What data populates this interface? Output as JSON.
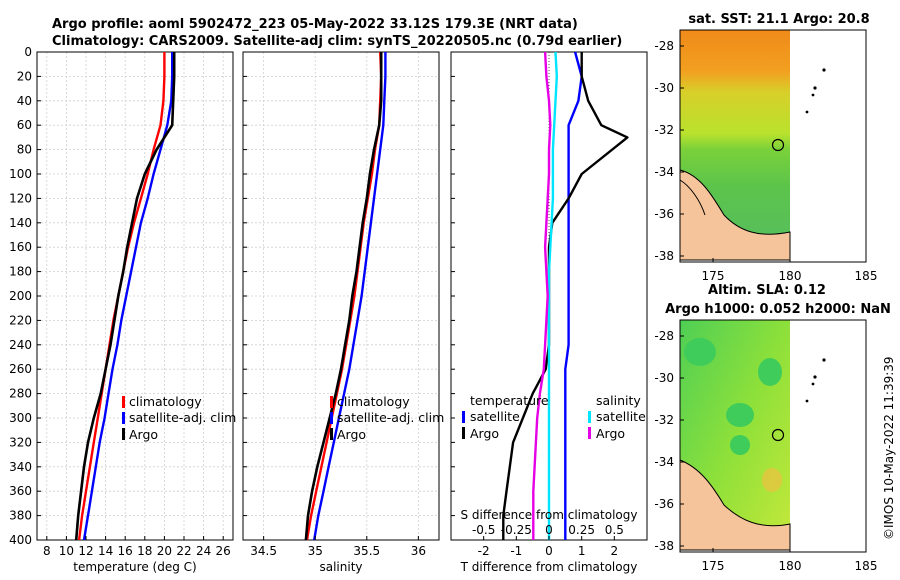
{
  "header": {
    "line1": "Argo profile: aoml 5902472_223 05-May-2022 33.12S 179.3E (NRT data)",
    "line2": "Climatology: CARS2009. Satellite-adj clim: synTS_20220505.nc (0.79d earlier)"
  },
  "depth_ticks": [
    "0",
    "20",
    "40",
    "60",
    "80",
    "100",
    "120",
    "140",
    "160",
    "180",
    "200",
    "220",
    "240",
    "260",
    "280",
    "300",
    "320",
    "340",
    "360",
    "380",
    "400"
  ],
  "colors": {
    "climatology": "#ff0000",
    "satellite": "#0000ff",
    "argo": "#000000",
    "cyan": "#00e5ff",
    "magenta": "#e600e6",
    "grid": "#cfcfcf"
  },
  "panels": {
    "temperature": {
      "xlabel": "temperature (deg C)",
      "xticks": [
        "8",
        "10",
        "12",
        "14",
        "16",
        "18",
        "20",
        "22",
        "24",
        "26"
      ],
      "legend": [
        "climatology",
        "satellite-adj. clim",
        "Argo"
      ]
    },
    "salinity": {
      "xlabel": "salinity",
      "xticks": [
        "34.5",
        "35",
        "35.5",
        "36"
      ],
      "legend": [
        "climatology",
        "satellite-adj. clim",
        "Argo"
      ]
    },
    "difference": {
      "xlabel": "T difference from climatology",
      "xticks": [
        "-2",
        "-1",
        "0",
        "1",
        "2"
      ],
      "top_label": "S difference from climatology",
      "top_ticks": [
        "-0.5",
        "-0.25",
        "0",
        "0.25",
        "0.5"
      ],
      "legend_t_title": "temperature",
      "legend_s_title": "salinity",
      "legend_t": [
        "satellite",
        "Argo"
      ],
      "legend_s": [
        "satellite",
        "Argo"
      ]
    }
  },
  "maps": {
    "sst": {
      "title": "sat. SST: 21.1 Argo: 20.8"
    },
    "sla": {
      "title1": "Altim. SLA: 0.12",
      "title2": "Argo h1000: 0.052 h2000: NaN"
    },
    "xticks": [
      "175",
      "180",
      "185"
    ],
    "yticks": [
      "-28",
      "-30",
      "-32",
      "-34",
      "-36",
      "-38"
    ]
  },
  "watermark": "©IMOS 10-May-2022 11:39:39",
  "chart_data": [
    {
      "type": "line",
      "title": "temperature profile",
      "xlabel": "temperature (deg C)",
      "ylabel": "depth",
      "xlim": [
        7,
        27
      ],
      "ylim": [
        400,
        0
      ],
      "series": [
        {
          "name": "climatology",
          "x": [
            20.0,
            20.0,
            19.9,
            19.6,
            18.9,
            18.3,
            17.6,
            16.9,
            16.3,
            15.8,
            15.3,
            14.8,
            14.4,
            14.0,
            13.6,
            13.2,
            12.8,
            12.4,
            12.0,
            11.6,
            11.3
          ],
          "y": [
            0,
            20,
            40,
            60,
            80,
            100,
            120,
            140,
            160,
            180,
            200,
            220,
            240,
            260,
            280,
            300,
            320,
            340,
            360,
            380,
            400
          ]
        },
        {
          "name": "satellite-adj. clim",
          "x": [
            20.8,
            20.8,
            20.7,
            20.3,
            19.6,
            18.9,
            18.3,
            17.6,
            17.1,
            16.6,
            16.1,
            15.6,
            15.2,
            14.7,
            14.3,
            13.9,
            13.4,
            13.0,
            12.6,
            12.2,
            11.8
          ],
          "y": [
            0,
            20,
            40,
            60,
            80,
            100,
            120,
            140,
            160,
            180,
            200,
            220,
            240,
            260,
            280,
            300,
            320,
            340,
            360,
            380,
            400
          ]
        },
        {
          "name": "Argo",
          "x": [
            21.0,
            21.0,
            20.9,
            20.8,
            19.2,
            18.0,
            17.2,
            16.7,
            16.2,
            15.8,
            15.3,
            14.9,
            14.5,
            14.0,
            13.5,
            12.8,
            12.2,
            11.8,
            11.5,
            11.2,
            11.0
          ],
          "y": [
            0,
            20,
            40,
            60,
            80,
            100,
            120,
            140,
            160,
            180,
            200,
            220,
            240,
            260,
            280,
            300,
            320,
            340,
            360,
            380,
            400
          ]
        }
      ]
    },
    {
      "type": "line",
      "title": "salinity profile",
      "xlabel": "salinity",
      "ylabel": "depth",
      "xlim": [
        34.3,
        36.2
      ],
      "ylim": [
        400,
        0
      ],
      "series": [
        {
          "name": "climatology",
          "x": [
            35.63,
            35.64,
            35.63,
            35.62,
            35.58,
            35.55,
            35.51,
            35.47,
            35.44,
            35.41,
            35.38,
            35.34,
            35.3,
            35.26,
            35.21,
            35.16,
            35.11,
            35.06,
            35.01,
            34.96,
            34.92
          ],
          "y": [
            0,
            20,
            40,
            60,
            80,
            100,
            120,
            140,
            160,
            180,
            200,
            220,
            240,
            260,
            280,
            300,
            320,
            340,
            360,
            380,
            400
          ]
        },
        {
          "name": "satellite-adj. clim",
          "x": [
            35.68,
            35.68,
            35.67,
            35.66,
            35.63,
            35.6,
            35.57,
            35.54,
            35.51,
            35.48,
            35.45,
            35.41,
            35.37,
            35.33,
            35.28,
            35.23,
            35.18,
            35.13,
            35.08,
            35.03,
            34.99
          ],
          "y": [
            0,
            20,
            40,
            60,
            80,
            100,
            120,
            140,
            160,
            180,
            200,
            220,
            240,
            260,
            280,
            300,
            320,
            340,
            360,
            380,
            400
          ]
        },
        {
          "name": "Argo",
          "x": [
            35.64,
            35.64,
            35.64,
            35.62,
            35.57,
            35.53,
            35.5,
            35.46,
            35.43,
            35.4,
            35.36,
            35.33,
            35.29,
            35.25,
            35.2,
            35.14,
            35.08,
            35.02,
            34.97,
            34.93,
            34.91
          ],
          "y": [
            0,
            20,
            40,
            60,
            80,
            100,
            120,
            140,
            160,
            180,
            200,
            220,
            240,
            260,
            280,
            300,
            320,
            340,
            360,
            380,
            400
          ]
        }
      ]
    },
    {
      "type": "line",
      "title": "difference from climatology",
      "xlabel": "T difference from climatology",
      "ylabel": "depth",
      "xlim": [
        -3,
        3
      ],
      "ylim": [
        400,
        0
      ],
      "series": [
        {
          "name": "temperature satellite",
          "x": [
            0.8,
            1.0,
            0.9,
            0.6,
            0.6,
            0.6,
            0.6,
            0.6,
            0.6,
            0.6,
            0.6,
            0.6,
            0.6,
            0.5,
            0.5,
            0.5,
            0.5,
            0.5,
            0.5,
            0.5,
            0.5
          ],
          "y": [
            0,
            20,
            40,
            60,
            80,
            100,
            120,
            140,
            160,
            180,
            200,
            220,
            240,
            260,
            280,
            300,
            320,
            340,
            360,
            380,
            400
          ]
        },
        {
          "name": "temperature Argo",
          "x": [
            1.0,
            1.0,
            1.2,
            1.6,
            2.4,
            1.0,
            0.6,
            0.1,
            0.0,
            0.0,
            0.0,
            0.0,
            0.0,
            -0.1,
            -0.5,
            -0.8,
            -1.1,
            -1.2,
            -1.3,
            -1.4,
            -1.4
          ],
          "y": [
            0,
            20,
            40,
            60,
            70,
            100,
            120,
            140,
            160,
            180,
            200,
            220,
            240,
            260,
            280,
            300,
            320,
            340,
            360,
            380,
            400
          ]
        },
        {
          "name": "salinity satellite",
          "x": [
            0.05,
            0.06,
            0.05,
            0.04,
            0.03,
            0.03,
            0.03,
            0.02,
            0.01,
            0.0,
            0.0,
            0.0,
            0.0,
            0.0,
            0.0,
            0.0,
            0.0,
            0.0,
            0.0,
            0.0,
            0.0
          ],
          "y": [
            0,
            20,
            40,
            60,
            80,
            100,
            120,
            140,
            160,
            180,
            200,
            220,
            240,
            260,
            280,
            300,
            320,
            340,
            360,
            380,
            400
          ]
        },
        {
          "name": "salinity Argo",
          "x": [
            -0.03,
            -0.02,
            0.0,
            0.01,
            0.0,
            0.0,
            -0.01,
            -0.02,
            -0.03,
            -0.02,
            -0.01,
            -0.02,
            -0.03,
            -0.04,
            -0.07,
            -0.09,
            -0.1,
            -0.11,
            -0.12,
            -0.12,
            -0.12
          ],
          "y": [
            0,
            20,
            40,
            60,
            80,
            100,
            120,
            140,
            160,
            180,
            200,
            220,
            240,
            260,
            280,
            300,
            320,
            340,
            360,
            380,
            400
          ]
        }
      ]
    }
  ]
}
